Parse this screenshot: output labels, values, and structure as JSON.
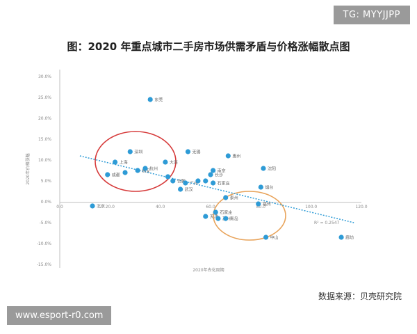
{
  "watermark_top": "TG: MYYJJPP",
  "watermark_bottom": "www.esport-r0.com",
  "source_note": "数据来源：贝壳研究院",
  "chart_data": {
    "type": "scatter",
    "title": "图：2020 年重点城市二手房市场供需矛盾与价格涨幅散点图",
    "xlabel": "2020年去化周期",
    "ylabel": "2020年价格涨幅",
    "xlim": [
      0,
      120
    ],
    "ylim": [
      -15,
      30
    ],
    "x_ticks": [
      "0.0",
      "20.0",
      "40.0",
      "60.0",
      "80.0",
      "100.0",
      "120.0"
    ],
    "y_ticks": [
      "30.0%",
      "25.0%",
      "20.0%",
      "15.0%",
      "10.0%",
      "5.0%",
      "0.0%",
      "-5.0%",
      "-10.0%",
      "-15.0%"
    ],
    "grid": false,
    "trendline_label": "R² = 0.2547",
    "colors": {
      "point": "#2e9bd6",
      "trend": "#2e9bd6",
      "circle_red": "#d63a3a",
      "circle_orange": "#e8a35a"
    },
    "points": [
      {
        "label": "东莞",
        "x": 36,
        "y": 24.5
      },
      {
        "label": "深圳",
        "x": 28,
        "y": 12
      },
      {
        "label": "上海",
        "x": 22,
        "y": 9.5
      },
      {
        "label": "成都",
        "x": 19,
        "y": 6.5
      },
      {
        "label": "",
        "x": 26,
        "y": 7
      },
      {
        "label": "佛安",
        "x": 31,
        "y": 7.5
      },
      {
        "label": "杭州",
        "x": 34,
        "y": 8
      },
      {
        "label": "大连",
        "x": 42,
        "y": 9.5
      },
      {
        "label": "",
        "x": 43,
        "y": 6
      },
      {
        "label": "合肥",
        "x": 45,
        "y": 5
      },
      {
        "label": "广州",
        "x": 50,
        "y": 4.5
      },
      {
        "label": "武汉",
        "x": 48,
        "y": 3
      },
      {
        "label": "无锡",
        "x": 51,
        "y": 12
      },
      {
        "label": "",
        "x": 55,
        "y": 5
      },
      {
        "label": "",
        "x": 58,
        "y": 5
      },
      {
        "label": "石家庄",
        "x": 61,
        "y": 4.5
      },
      {
        "label": "南京",
        "x": 61,
        "y": 7.5
      },
      {
        "label": "长沙",
        "x": 60,
        "y": 6.5
      },
      {
        "label": "惠州",
        "x": 67,
        "y": 11
      },
      {
        "label": "沈阳",
        "x": 81,
        "y": 8
      },
      {
        "label": "烟台",
        "x": 80,
        "y": 3.5
      },
      {
        "label": "泰州",
        "x": 66,
        "y": 1
      },
      {
        "label": "福州",
        "x": 79,
        "y": -0.5
      },
      {
        "label": "北京",
        "x": 13,
        "y": -1
      },
      {
        "label": "天津",
        "x": 58,
        "y": -3.5
      },
      {
        "label": "石家庄",
        "x": 62,
        "y": -2.5
      },
      {
        "label": "苏州",
        "x": 63,
        "y": -4
      },
      {
        "label": "青岛",
        "x": 66,
        "y": -4
      },
      {
        "label": "中山",
        "x": 82,
        "y": -8.5
      },
      {
        "label": "廊坊",
        "x": 112,
        "y": -8.5
      }
    ],
    "trend": {
      "x": [
        8,
        117
      ],
      "y": [
        11,
        -5
      ]
    }
  }
}
